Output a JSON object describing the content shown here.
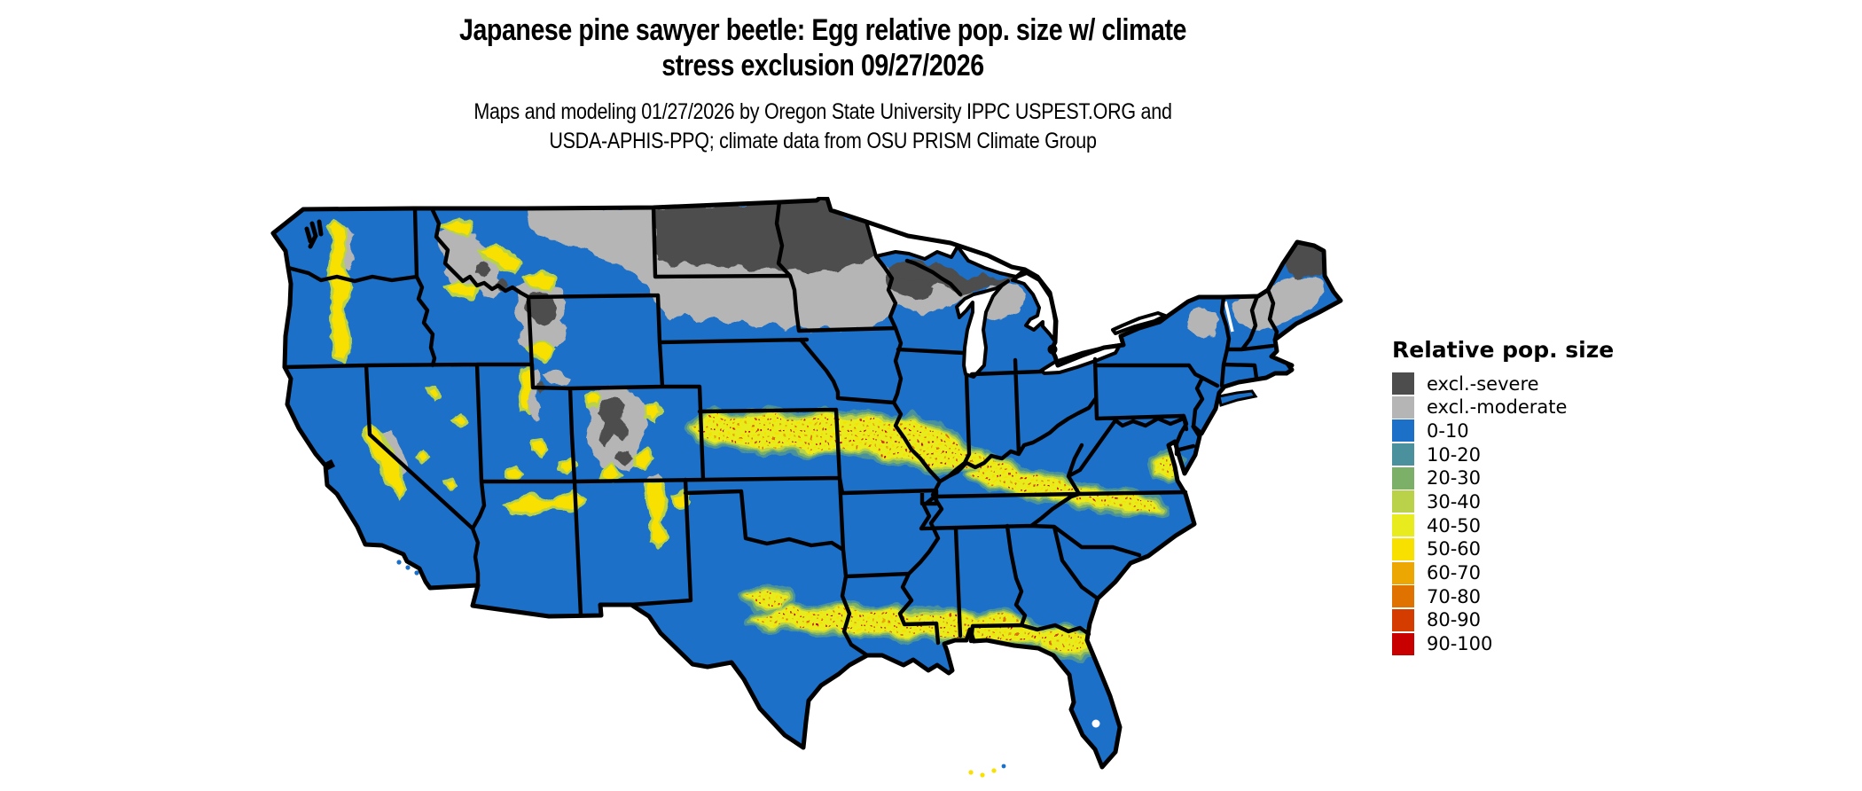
{
  "header": {
    "title_line1": "Japanese pine sawyer beetle: Egg relative pop. size w/ climate",
    "title_line2": "stress exclusion 09/27/2026",
    "subtitle_line1": "Maps and modeling 01/27/2026 by Oregon State University IPPC USPEST.ORG and",
    "subtitle_line2": "USDA-APHIS-PPQ; climate data from OSU PRISM Climate Group"
  },
  "legend": {
    "title": "Relative pop. size",
    "items": [
      {
        "label": "excl.-severe",
        "color": "#4d4d4d",
        "key": "sev"
      },
      {
        "label": "excl.-moderate",
        "color": "#b5b5b5",
        "key": "mod"
      },
      {
        "label": "0-10",
        "color": "#1c70c8",
        "key": "c010"
      },
      {
        "label": "10-20",
        "color": "#4a919d",
        "key": "c1020"
      },
      {
        "label": "20-30",
        "color": "#7cb068",
        "key": "c2030"
      },
      {
        "label": "30-40",
        "color": "#b9d24a",
        "key": "c3040"
      },
      {
        "label": "40-50",
        "color": "#e8ec1f",
        "key": "c4050"
      },
      {
        "label": "50-60",
        "color": "#f8e000",
        "key": "c5060"
      },
      {
        "label": "60-70",
        "color": "#eda702",
        "key": "c6070"
      },
      {
        "label": "70-80",
        "color": "#e07200",
        "key": "c7080"
      },
      {
        "label": "80-90",
        "color": "#d43c00",
        "key": "c8090"
      },
      {
        "label": "90-100",
        "color": "#c80000",
        "key": "c90100"
      }
    ]
  },
  "chart_data": {
    "type": "heatmap",
    "subtype": "choropleth-raster-map",
    "region": "Contiguous United States with state boundaries",
    "title": "Japanese pine sawyer beetle: Egg relative pop. size w/ climate stress exclusion 09/27/2026",
    "legend_title": "Relative pop. size",
    "legend_position": "right",
    "classes": [
      {
        "label": "excl.-severe",
        "color": "#4d4d4d"
      },
      {
        "label": "excl.-moderate",
        "color": "#b5b5b5"
      },
      {
        "label": "0-10",
        "color": "#1c70c8"
      },
      {
        "label": "10-20",
        "color": "#4a919d"
      },
      {
        "label": "20-30",
        "color": "#7cb068"
      },
      {
        "label": "30-40",
        "color": "#b9d24a"
      },
      {
        "label": "40-50",
        "color": "#e8ec1f"
      },
      {
        "label": "50-60",
        "color": "#f8e000"
      },
      {
        "label": "60-70",
        "color": "#eda702"
      },
      {
        "label": "70-80",
        "color": "#e07200"
      },
      {
        "label": "80-90",
        "color": "#d43c00"
      },
      {
        "label": "90-100",
        "color": "#c80000"
      }
    ],
    "pattern_summary": {
      "dominant_class": "0-10 (blue) across most of the contiguous US",
      "excl_severe_areas": [
        "northern/eastern North Dakota",
        "northern Minnesota",
        "northern Wisconsin",
        "upper peninsula of Michigan",
        "northern Maine",
        "Yellowstone region of Wyoming",
        "Colorado high Rockies",
        "central Idaho peaks"
      ],
      "excl_moderate_areas": [
        "northern Montana strip",
        "eastern Dakotas",
        "southern Minnesota",
        "central Wisconsin",
        "northern lower Michigan",
        "Adirondacks of New York",
        "northern Vermont / New Hampshire and central Maine",
        "high elevations of the Rockies, Wasatch, Sierra Nevada and Cascades"
      ],
      "high_value_bands_40_100": [
        "central band from Kansas and Nebraska border through Missouri, southern Illinois, Kentucky, Tennessee into Virginia piedmont",
        "Gulf Coast band from central Texas through Louisiana, Mississippi, Alabama, Georgia and north Florida",
        "mountain margins of the West: Cascades, Sierra Nevada, Arizona Mogollon Rim, New Mexico ranges, Rockies fringes"
      ],
      "water_bodies_blank": [
        "Great Lakes",
        "Chesapeake Bay",
        "Lake Okeechobee"
      ]
    }
  }
}
